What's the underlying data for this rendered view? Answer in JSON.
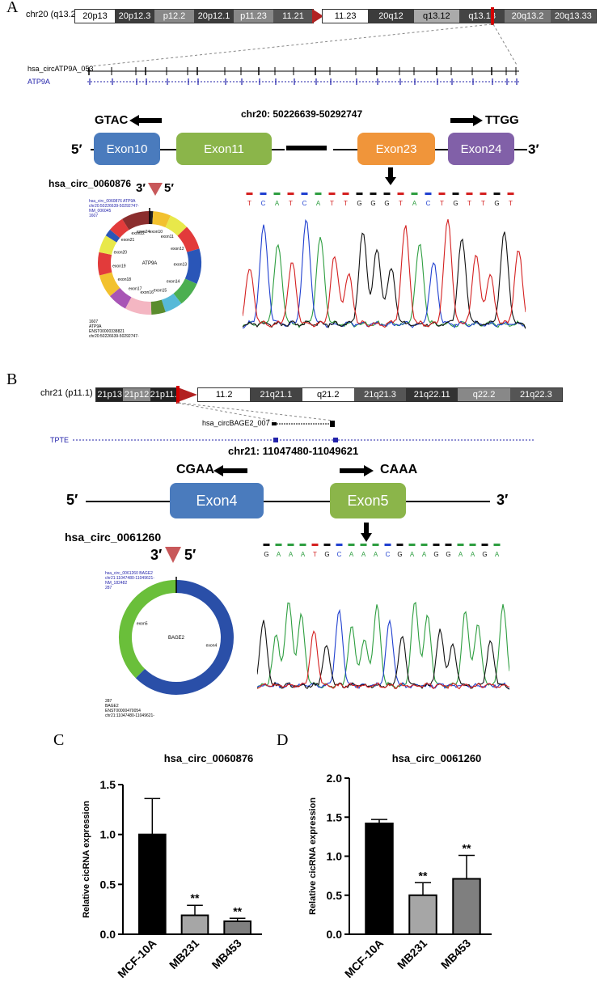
{
  "panelA": {
    "letter": "A",
    "chrom_label": "chr20 (q13.2)",
    "bands_left": [
      "20p13",
      "20p12.3",
      "p12.2",
      "20p12.1",
      "p11.23",
      "11.21"
    ],
    "bands_right": [
      "11.23",
      "20q12",
      "q13.12",
      "q13.13",
      "20q13.2",
      "20q13.33"
    ],
    "track1_label": "hsa_circATP9A_053",
    "track2_label": "ATP9A",
    "coords": "chr20: 50226639-50292747",
    "left_seq": "GTAC",
    "right_seq": "TTGG",
    "five_prime": "5′",
    "three_prime": "3′",
    "exons": [
      "Exon10",
      "Exon11",
      "Exon23",
      "Exon24"
    ],
    "circ_name": "hsa_circ_0060876",
    "marker_left": "3′",
    "marker_right": "5′",
    "circle_center": "ATP9A",
    "circle_top_text": [
      "hsa_circ_0060876 ATP9A",
      "chr20:50226639-50292747-",
      "NM_006045",
      "1607"
    ],
    "circle_bottom_text": [
      "1607",
      "ATP9A",
      "ENST00000338821",
      "chr20:50226639-50292747-"
    ],
    "exon_labels": [
      "exon10",
      "exon11",
      "exon12",
      "exon13",
      "exon14",
      "exon15",
      "exon16",
      "exon17",
      "exon18",
      "exon19",
      "exon20",
      "exon21",
      "exon22",
      "exon24"
    ],
    "sequence": [
      "T",
      "C",
      "A",
      "T",
      "C",
      "A",
      "T",
      "T",
      "G",
      "G",
      "G",
      "T",
      "A",
      "C",
      "T",
      "G",
      "T",
      "T",
      "G",
      "T"
    ]
  },
  "panelB": {
    "letter": "B",
    "chrom_label": "chr21 (p11.1)",
    "bands_left": [
      "21p13",
      "21p12",
      "21p11.2"
    ],
    "bands_right": [
      "11.2",
      "21q21.1",
      "q21.2",
      "21q21.3",
      "21q22.11",
      "q22.2",
      "21q22.3"
    ],
    "track1_label": "hsa_circBAGE2_007",
    "track2_label": "TPTE",
    "coords": "chr21: 11047480-11049621",
    "left_seq": "CGAA",
    "right_seq": "CAAA",
    "five_prime": "5′",
    "three_prime": "3′",
    "exons": [
      "Exon4",
      "Exon5"
    ],
    "circ_name": "hsa_circ_0061260",
    "marker_left": "3′",
    "marker_right": "5′",
    "circle_center": "BAGE2",
    "circle_top_text": [
      "hsa_circ_0061260 BAGE2",
      "chr21:11047480-11049621-",
      "NM_182482",
      "287"
    ],
    "circle_bottom_text": [
      "287",
      "BAGE2",
      "ENST00000470054",
      "chr21:11047480-11049621-"
    ],
    "exon_labels": [
      "exon5",
      "exon4"
    ],
    "sequence": [
      "G",
      "A",
      "A",
      "A",
      "T",
      "G",
      "C",
      "A",
      "A",
      "A",
      "C",
      "G",
      "A",
      "A",
      "G",
      "G",
      "A",
      "A",
      "G",
      "A"
    ]
  },
  "chart_data": [
    {
      "panel": "C",
      "type": "bar",
      "title": "hsa_circ_0060876",
      "ylabel": "Relative cicRNA expression",
      "categories": [
        "MCF-10A",
        "MB231",
        "MB453"
      ],
      "values": [
        1.0,
        0.19,
        0.13
      ],
      "errors": [
        0.36,
        0.1,
        0.03
      ],
      "significance": [
        "",
        "**",
        "**"
      ],
      "colors": [
        "#000000",
        "#a6a6a6",
        "#7f7f7f"
      ],
      "ylim": [
        0,
        1.5
      ],
      "yticks": [
        "0.0",
        "0.5",
        "1.0",
        "1.5"
      ]
    },
    {
      "panel": "D",
      "type": "bar",
      "title": "hsa_circ_0061260",
      "ylabel": "Relative cicRNA expression",
      "categories": [
        "MCF-10A",
        "MB231",
        "MB453"
      ],
      "values": [
        1.42,
        0.5,
        0.71
      ],
      "errors": [
        0.05,
        0.16,
        0.3
      ],
      "significance": [
        "",
        "**",
        "**"
      ],
      "colors": [
        "#000000",
        "#a6a6a6",
        "#7f7f7f"
      ],
      "ylim": [
        0,
        2.0
      ],
      "yticks": [
        "0.0",
        "0.5",
        "1.0",
        "1.5",
        "2.0"
      ]
    }
  ]
}
